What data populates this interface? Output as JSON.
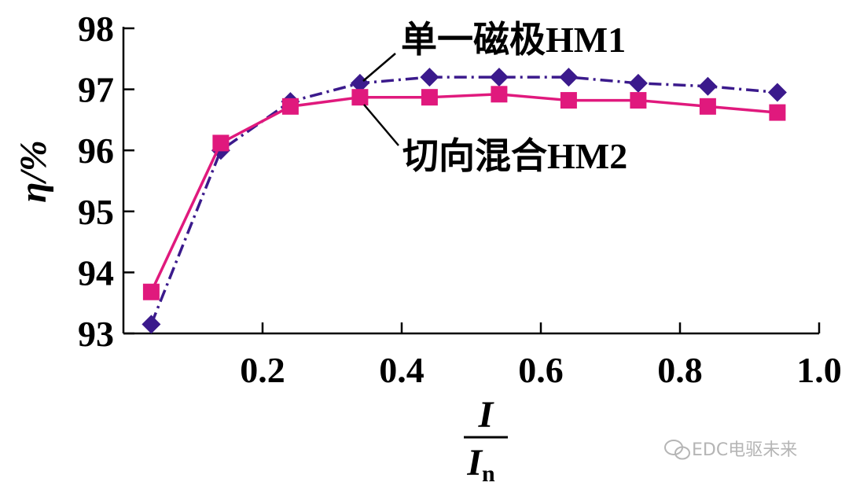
{
  "chart_data": {
    "type": "line",
    "title": "",
    "xlabel": {
      "numerator": "I",
      "denominator": "I",
      "denominator_sub": "n"
    },
    "ylabel": "η/%",
    "xlim": [
      0,
      1.0
    ],
    "ylim": [
      93,
      98
    ],
    "xticks": [
      0.2,
      0.4,
      0.6,
      0.8,
      1.0
    ],
    "xtick_labels": [
      "0.2",
      "0.4",
      "0.6",
      "0.8",
      "1.0"
    ],
    "yticks": [
      93,
      94,
      95,
      96,
      97,
      98
    ],
    "ytick_labels": [
      "93",
      "94",
      "95",
      "96",
      "97",
      "98"
    ],
    "grid": false,
    "series": [
      {
        "name": "单一磁极HM1",
        "color": "#3b1a8c",
        "line_style": "dash-dot",
        "marker": "diamond",
        "x": [
          0.04,
          0.14,
          0.24,
          0.34,
          0.44,
          0.54,
          0.64,
          0.74,
          0.84,
          0.94
        ],
        "y": [
          93.15,
          96.0,
          96.8,
          97.1,
          97.2,
          97.2,
          97.2,
          97.1,
          97.05,
          96.95
        ]
      },
      {
        "name": "切向混合HM2",
        "color": "#e0197d",
        "line_style": "solid",
        "marker": "square",
        "x": [
          0.04,
          0.14,
          0.24,
          0.34,
          0.44,
          0.54,
          0.64,
          0.74,
          0.84,
          0.94
        ],
        "y": [
          93.68,
          96.12,
          96.72,
          96.87,
          96.87,
          96.92,
          96.82,
          96.82,
          96.72,
          96.62
        ]
      }
    ]
  },
  "watermark": {
    "text": "EDC电驱未来",
    "icon": "wechat-icon"
  }
}
